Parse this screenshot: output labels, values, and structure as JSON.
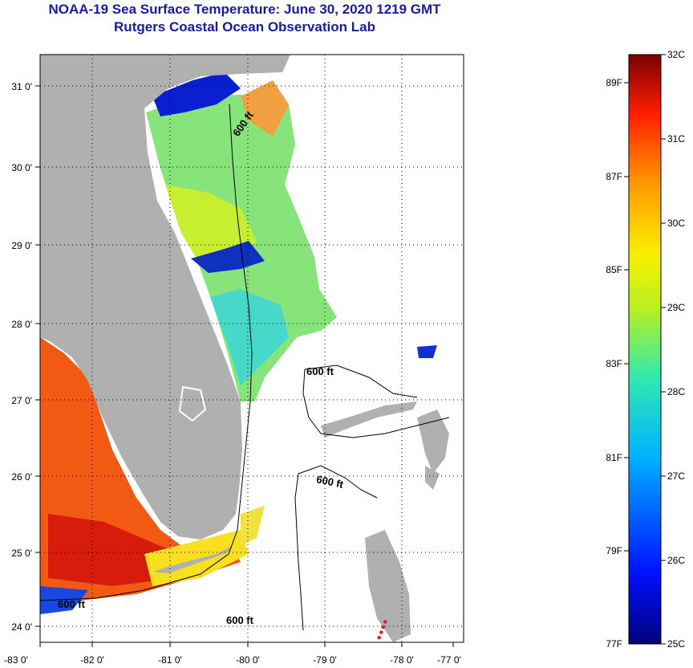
{
  "header": {
    "title": "NOAA-19 Sea Surface Temperature:  June 30, 2020 1219 GMT",
    "subtitle": "Rutgers Coastal Ocean Observation Lab"
  },
  "map": {
    "lon_labels": [
      "-83 0'",
      "-82 0'",
      "-81 0'",
      "-80 0'",
      "-79 0'",
      "-78 0'",
      "-77 0'"
    ],
    "lat_labels": [
      "24 0'",
      "25 0'",
      "26 0'",
      "27 0'",
      "28 0'",
      "29 0'",
      "30 0'",
      "31 0'"
    ],
    "contour_labels": [
      "600 ft",
      "600 ft",
      "600 ft",
      "600 ft",
      "600 ft"
    ],
    "colors": {
      "land": "#b0b0b0",
      "ocean_nodata": "#ffffff"
    }
  },
  "colorbar": {
    "celsius_labels": [
      "32C",
      "31C",
      "30C",
      "29C",
      "28C",
      "27C",
      "26C",
      "25C"
    ],
    "fahrenheit_labels": [
      "89F",
      "87F",
      "85F",
      "83F",
      "81F",
      "79F",
      "77F"
    ],
    "range_c": [
      25,
      32
    ]
  }
}
